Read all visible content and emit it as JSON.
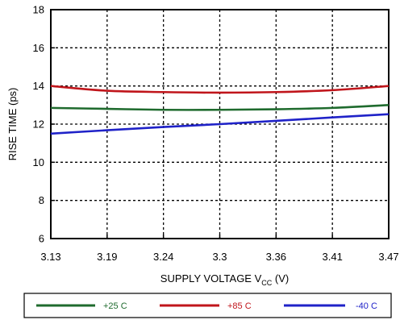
{
  "chart_data": {
    "type": "line",
    "title": "",
    "xlabel": "SUPPLY VOLTAGE V",
    "xlabel_sub": "CC",
    "xlabel_unit": " (V)",
    "ylabel": "RISE TIME (ps)",
    "x_ticks": [
      "3.13",
      "3.19",
      "3.24",
      "3.3",
      "3.36",
      "3.41",
      "3.47"
    ],
    "y_ticks": [
      "6",
      "8",
      "10",
      "12",
      "14",
      "16",
      "18"
    ],
    "xlim": [
      3.13,
      3.47
    ],
    "ylim": [
      6,
      18
    ],
    "grid": true,
    "legend_position": "bottom",
    "x": [
      3.13,
      3.1867,
      3.2433,
      3.3,
      3.3567,
      3.4133,
      3.47
    ],
    "series": [
      {
        "name": "+25 C",
        "color": "#1f6b2e",
        "values": [
          12.85,
          12.8,
          12.75,
          12.75,
          12.78,
          12.85,
          13.0
        ]
      },
      {
        "name": "+85 C",
        "color": "#c0151b",
        "values": [
          14.0,
          13.75,
          13.68,
          13.65,
          13.68,
          13.78,
          14.0
        ]
      },
      {
        "name": "-40 C",
        "color": "#1f22c8",
        "values": [
          11.5,
          11.68,
          11.85,
          12.0,
          12.17,
          12.35,
          12.52
        ]
      }
    ]
  }
}
